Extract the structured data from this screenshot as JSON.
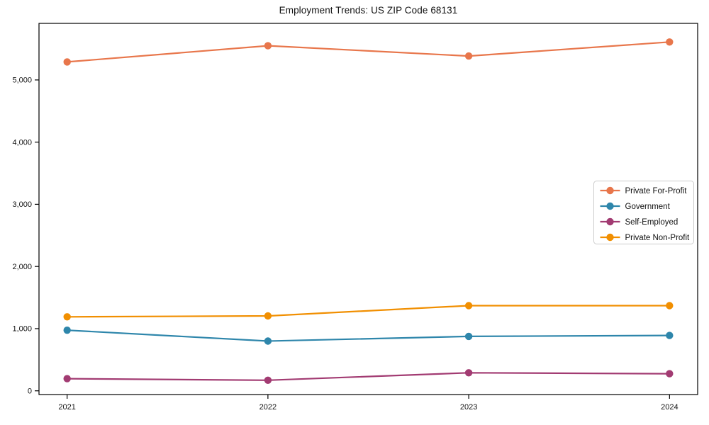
{
  "chart_data": {
    "type": "line",
    "title": "Employment Trends: US ZIP Code 68131",
    "xlabel": "",
    "ylabel": "",
    "x": [
      2021,
      2022,
      2023,
      2024
    ],
    "categories": [
      "2021",
      "2022",
      "2023",
      "2024"
    ],
    "series": [
      {
        "name": "Private For-Profit",
        "color": "#e8764b",
        "values": [
          5290,
          5550,
          5385,
          5610
        ]
      },
      {
        "name": "Government",
        "color": "#2e86ab",
        "values": [
          975,
          800,
          875,
          890
        ]
      },
      {
        "name": "Self-Employed",
        "color": "#a23b72",
        "values": [
          195,
          170,
          290,
          275
        ]
      },
      {
        "name": "Private Non-Profit",
        "color": "#f18f01",
        "values": [
          1190,
          1205,
          1370,
          1370
        ]
      }
    ],
    "xlim": [
      2020.86,
      2024.14
    ],
    "ylim": [
      -60,
      5910
    ],
    "yticks": [
      0,
      1000,
      2000,
      3000,
      4000,
      5000
    ],
    "ytick_labels": [
      "0",
      "1,000",
      "2,000",
      "3,000",
      "4,000",
      "5,000"
    ],
    "xticks": [
      2021,
      2022,
      2023,
      2024
    ],
    "grid": false,
    "legend_position": "center-right",
    "marker": "circle",
    "axis_color": "#000000",
    "legend_border_color": "#cccccc",
    "legend_background": "#ffffff"
  }
}
